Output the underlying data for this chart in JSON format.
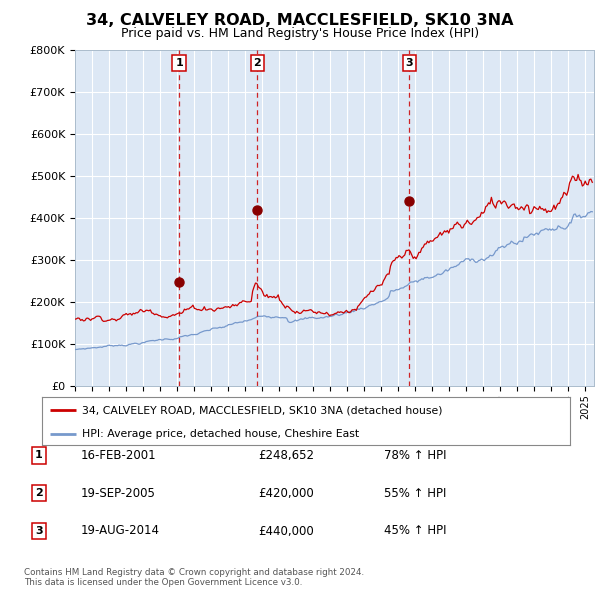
{
  "title": "34, CALVELEY ROAD, MACCLESFIELD, SK10 3NA",
  "subtitle": "Price paid vs. HM Land Registry's House Price Index (HPI)",
  "bg_color": "#dde8f5",
  "grid_color": "#c8d8ea",
  "red_line_color": "#cc0000",
  "blue_line_color": "#7799cc",
  "sale_marker_color": "#880000",
  "vline_color": "#cc0000",
  "ylim": [
    0,
    800000
  ],
  "yticks": [
    0,
    100000,
    200000,
    300000,
    400000,
    500000,
    600000,
    700000,
    800000
  ],
  "ytick_labels": [
    "£0",
    "£100K",
    "£200K",
    "£300K",
    "£400K",
    "£500K",
    "£600K",
    "£700K",
    "£800K"
  ],
  "sale_dates": [
    2001.12,
    2005.72,
    2014.64
  ],
  "sale_prices": [
    248652,
    420000,
    440000
  ],
  "sale_labels": [
    "1",
    "2",
    "3"
  ],
  "transaction_table": [
    {
      "num": "1",
      "date": "16-FEB-2001",
      "price": "£248,652",
      "hpi": "78% ↑ HPI"
    },
    {
      "num": "2",
      "date": "19-SEP-2005",
      "price": "£420,000",
      "hpi": "55% ↑ HPI"
    },
    {
      "num": "3",
      "date": "19-AUG-2014",
      "price": "£440,000",
      "hpi": "45% ↑ HPI"
    }
  ],
  "legend_entries": [
    "34, CALVELEY ROAD, MACCLESFIELD, SK10 3NA (detached house)",
    "HPI: Average price, detached house, Cheshire East"
  ],
  "footnote": "Contains HM Land Registry data © Crown copyright and database right 2024.\nThis data is licensed under the Open Government Licence v3.0.",
  "xmin": 1995.0,
  "xmax": 2025.5
}
